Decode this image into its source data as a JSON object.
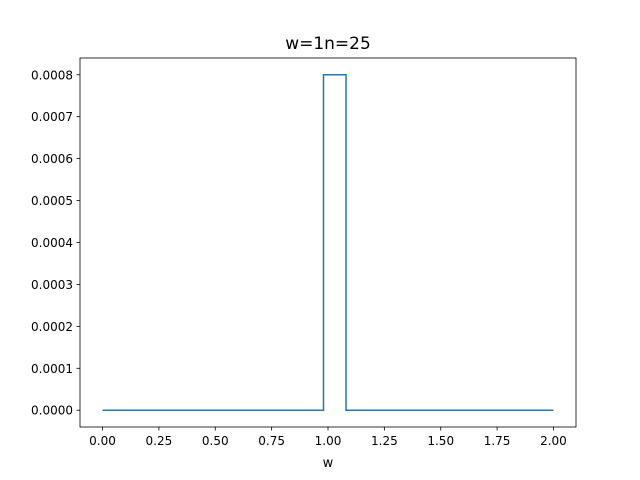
{
  "chart_data": {
    "type": "line",
    "title": "w=1n=25",
    "xlabel": "w",
    "ylabel": "",
    "xlim": [
      -0.1,
      2.1
    ],
    "ylim": [
      -4e-05,
      0.00084
    ],
    "xticks": [
      0.0,
      0.25,
      0.5,
      0.75,
      1.0,
      1.25,
      1.5,
      1.75,
      2.0
    ],
    "xtick_labels": [
      "0.00",
      "0.25",
      "0.50",
      "0.75",
      "1.00",
      "1.25",
      "1.50",
      "1.75",
      "2.00"
    ],
    "yticks": [
      0.0,
      0.0001,
      0.0002,
      0.0003,
      0.0004,
      0.0005,
      0.0006,
      0.0007,
      0.0008
    ],
    "ytick_labels": [
      "0.0000",
      "0.0001",
      "0.0002",
      "0.0003",
      "0.0004",
      "0.0005",
      "0.0006",
      "0.0007",
      "0.0008"
    ],
    "grid": false,
    "series": [
      {
        "color": "#1f77b4",
        "x": [
          0.0,
          0.98,
          0.98,
          1.08,
          1.08,
          2.0
        ],
        "y": [
          0.0,
          0.0,
          0.0008,
          0.0008,
          0.0,
          0.0
        ]
      }
    ]
  }
}
